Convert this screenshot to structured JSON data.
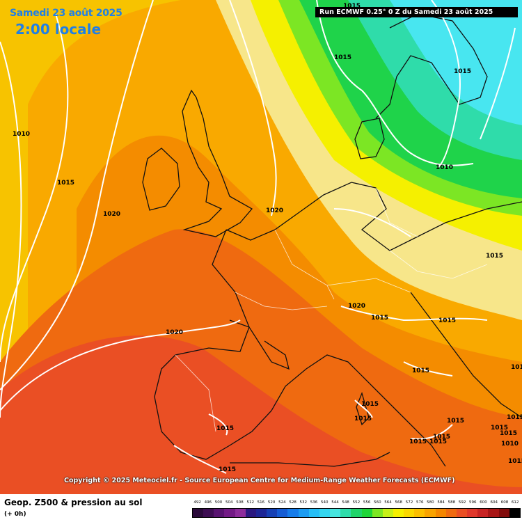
{
  "header": {
    "date": "Samedi 23 août 2025",
    "hour": "2:00 locale",
    "run": "Run ECMWF 0.25° 0 Z du Samedi 23 août 2025"
  },
  "map": {
    "isobar_labels": [
      "1010",
      "1015",
      "1020",
      "1015",
      "1020",
      "1015",
      "1020",
      "1015",
      "1020",
      "1015",
      "1015",
      "1015",
      "1015",
      "1015",
      "1015",
      "1015",
      "1015",
      "1015",
      "1010",
      "1015",
      "1015",
      "1015",
      "1015",
      "1015",
      "1015",
      "1015",
      "1015",
      "1010"
    ],
    "colors": {
      "cyan": "#48e6f0",
      "green": "#1fd34a",
      "yellow": "#f5f000",
      "orange": "#f59200",
      "red": "#ef4f2f",
      "isobar": "#ffffff",
      "coast": "#111111"
    }
  },
  "copyright": "Copyright © 2025 Meteociel.fr - Source European Centre for Medium-Range Weather Forecasts (ECMWF)",
  "legend": {
    "title": "Geop. Z500 & pression au sol",
    "subtitle": "(+ 0h)",
    "scale": [
      {
        "label": "492",
        "color": "#2a0a3a"
      },
      {
        "label": "496",
        "color": "#3d0d52"
      },
      {
        "label": "500",
        "color": "#581370"
      },
      {
        "label": "504",
        "color": "#731a86"
      },
      {
        "label": "508",
        "color": "#8d2c9b"
      },
      {
        "label": "512",
        "color": "#2a1880"
      },
      {
        "label": "516",
        "color": "#1d2696"
      },
      {
        "label": "520",
        "color": "#1640b4"
      },
      {
        "label": "524",
        "color": "#155cd4"
      },
      {
        "label": "528",
        "color": "#167cea"
      },
      {
        "label": "532",
        "color": "#1c9cf2"
      },
      {
        "label": "536",
        "color": "#26bef6"
      },
      {
        "label": "540",
        "color": "#34d6f0"
      },
      {
        "label": "544",
        "color": "#48e6e0"
      },
      {
        "label": "548",
        "color": "#2fdcaa"
      },
      {
        "label": "552",
        "color": "#1fd46a"
      },
      {
        "label": "556",
        "color": "#1ed538"
      },
      {
        "label": "560",
        "color": "#7ce624"
      },
      {
        "label": "564",
        "color": "#c6f018"
      },
      {
        "label": "568",
        "color": "#f5f000"
      },
      {
        "label": "572",
        "color": "#fad800"
      },
      {
        "label": "576",
        "color": "#fbbf00"
      },
      {
        "label": "580",
        "color": "#f8a300"
      },
      {
        "label": "584",
        "color": "#f48600"
      },
      {
        "label": "588",
        "color": "#ef6a10"
      },
      {
        "label": "592",
        "color": "#ea4f24"
      },
      {
        "label": "596",
        "color": "#e0382c"
      },
      {
        "label": "600",
        "color": "#c82424"
      },
      {
        "label": "604",
        "color": "#a81616"
      },
      {
        "label": "608",
        "color": "#820c0c"
      },
      {
        "label": "612",
        "color": "#000000"
      }
    ]
  }
}
